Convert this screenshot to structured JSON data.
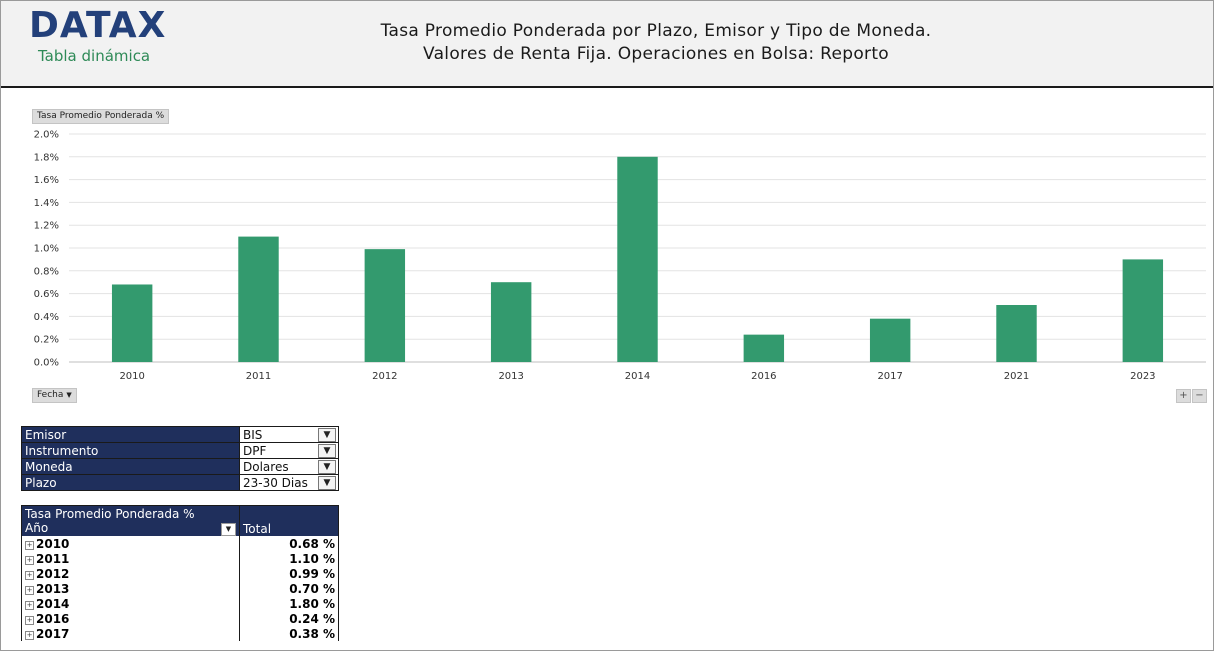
{
  "header": {
    "logo": "DATAX",
    "subtitle": "Tabla dinámica",
    "title_line1": "Tasa Promedio Ponderada por Plazo, Emisor y Tipo de Moneda.",
    "title_line2": "Valores de Renta Fija. Operaciones en Bolsa: Reporto"
  },
  "chart_controls": {
    "value_field_button": "Tasa Promedio Ponderada %",
    "axis_field_button": "Fecha",
    "plus": "+",
    "minus": "−"
  },
  "chart_data": {
    "type": "bar",
    "categories": [
      "2010",
      "2011",
      "2012",
      "2013",
      "2014",
      "2016",
      "2017",
      "2021",
      "2023"
    ],
    "values": [
      0.68,
      1.1,
      0.99,
      0.7,
      1.8,
      0.24,
      0.38,
      0.5,
      0.9
    ],
    "ylim": [
      0,
      2.0
    ],
    "yticks": [
      "0.0%",
      "0.2%",
      "0.4%",
      "0.6%",
      "0.8%",
      "1.0%",
      "1.2%",
      "1.4%",
      "1.6%",
      "1.8%",
      "2.0%"
    ],
    "grid": true,
    "bar_color": "#339a6e"
  },
  "filters": [
    {
      "key": "Emisor",
      "value": "BIS"
    },
    {
      "key": "Instrumento",
      "value": "DPF"
    },
    {
      "key": "Moneda",
      "value": "Dolares"
    },
    {
      "key": "Plazo",
      "value": "23-30 Dias"
    }
  ],
  "pivot": {
    "header_title": "Tasa Promedio Ponderada %",
    "row_label": "Año",
    "total_label": "Total",
    "rows": [
      {
        "year": "2010",
        "total": "0.68 %"
      },
      {
        "year": "2011",
        "total": "1.10 %"
      },
      {
        "year": "2012",
        "total": "0.99 %"
      },
      {
        "year": "2013",
        "total": "0.70 %"
      },
      {
        "year": "2014",
        "total": "1.80 %"
      },
      {
        "year": "2016",
        "total": "0.24 %"
      },
      {
        "year": "2017",
        "total": "0.38 %"
      }
    ]
  },
  "colors": {
    "navy": "#1f2f5c",
    "logo_blue": "#23407a",
    "green": "#2e8a57"
  }
}
